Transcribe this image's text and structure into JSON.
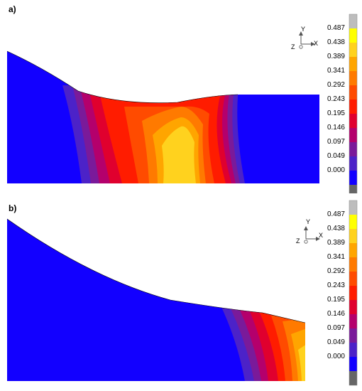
{
  "panels": [
    {
      "label": "a)"
    },
    {
      "label": "b)"
    }
  ],
  "colorbar": {
    "ticks": [
      "0.487",
      "0.438",
      "0.389",
      "0.341",
      "0.292",
      "0.243",
      "0.195",
      "0.146",
      "0.097",
      "0.049",
      "0.000"
    ],
    "colors": [
      "#bdbdbd",
      "#ffff00",
      "#ffd21e",
      "#ffa500",
      "#ff7a00",
      "#ff4b00",
      "#ff1c00",
      "#e0002e",
      "#b4006c",
      "#7a1a9a",
      "#4c22c8",
      "#1200ff",
      "#666666"
    ]
  },
  "axes_triad": {
    "y": "Y",
    "z": "Z",
    "x": "X"
  }
}
